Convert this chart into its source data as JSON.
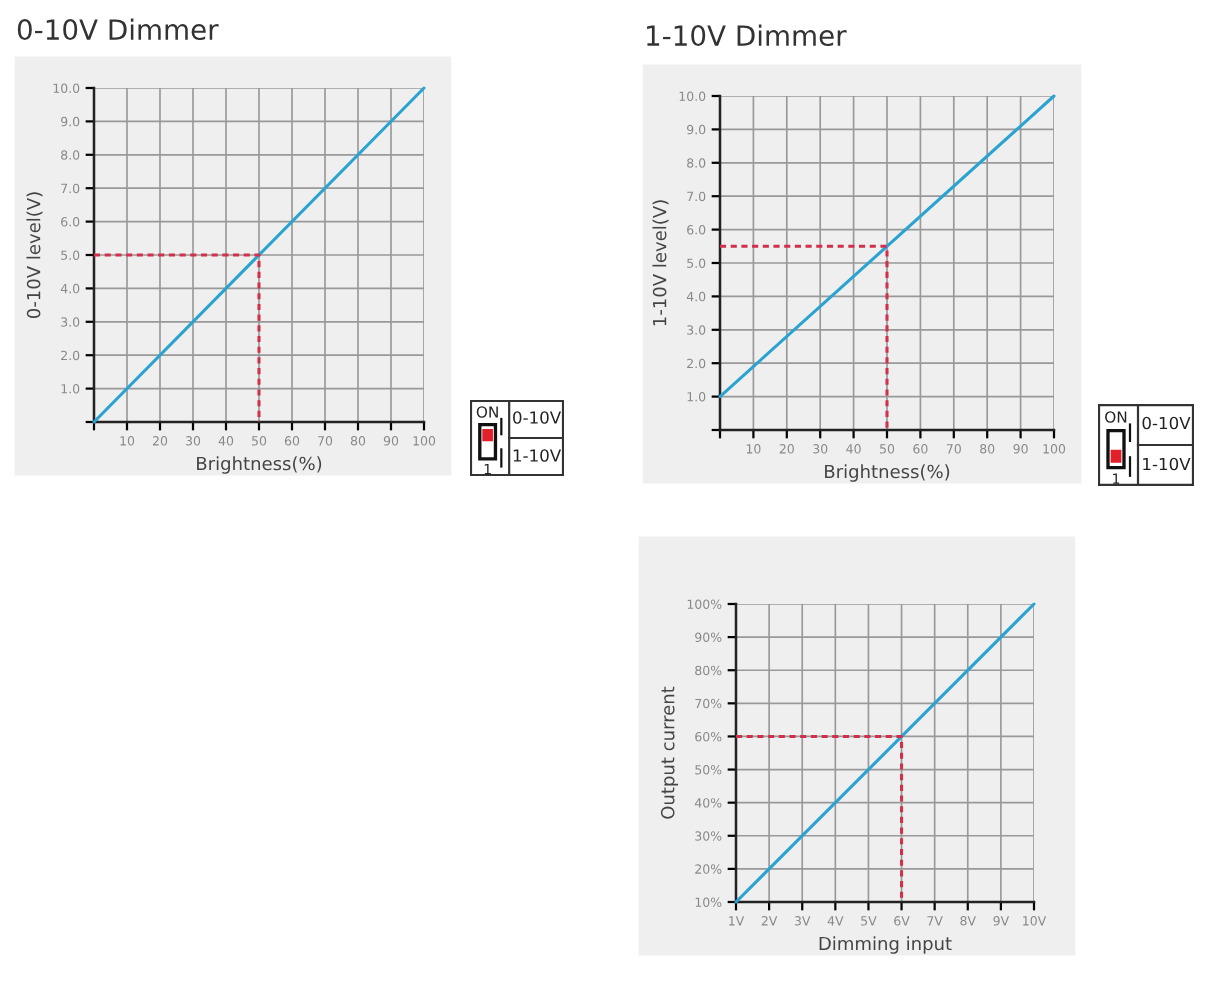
{
  "chart_data": [
    {
      "type": "line",
      "title": "0-10V Dimmer",
      "xlabel": "Brightness(%)",
      "ylabel": "0-10V level(V)",
      "xlim": [
        0,
        100
      ],
      "ylim": [
        0,
        10
      ],
      "xticks": [
        {
          "value": 0,
          "label": null
        },
        10,
        20,
        30,
        40,
        50,
        60,
        70,
        80,
        90,
        100
      ],
      "yticks": [
        {
          "value": 0,
          "label": null
        },
        {
          "value": 1,
          "label": "1.0"
        },
        {
          "value": 2,
          "label": "2.0"
        },
        {
          "value": 3,
          "label": "3.0"
        },
        {
          "value": 4,
          "label": "4.0"
        },
        {
          "value": 5,
          "label": "5.0"
        },
        {
          "value": 6,
          "label": "6.0"
        },
        {
          "value": 7,
          "label": "7.0"
        },
        {
          "value": 8,
          "label": "8.0"
        },
        {
          "value": 9,
          "label": "9.0"
        },
        {
          "value": 10,
          "label": "10.0"
        }
      ],
      "grid": true,
      "series": [
        {
          "color": "#2aa3d0",
          "x": [
            0,
            100
          ],
          "values": [
            0,
            10
          ]
        },
        {
          "color": "#d0304a",
          "line_style": "dashed",
          "x": [
            0,
            50,
            50
          ],
          "values": [
            5,
            5,
            0
          ]
        }
      ]
    },
    {
      "type": "line",
      "title": "1-10V Dimmer",
      "xlabel": "Brightness(%)",
      "ylabel": "1-10V level(V)",
      "xlim": [
        0,
        100
      ],
      "ylim": [
        0,
        10
      ],
      "xticks": [
        {
          "value": 0,
          "label": null
        },
        10,
        20,
        30,
        40,
        50,
        60,
        70,
        80,
        90,
        100
      ],
      "yticks": [
        {
          "value": 0,
          "label": null
        },
        {
          "value": 1,
          "label": "1.0"
        },
        {
          "value": 2,
          "label": "2.0"
        },
        {
          "value": 3,
          "label": "3.0"
        },
        {
          "value": 4,
          "label": "4.0"
        },
        {
          "value": 5,
          "label": "5.0"
        },
        {
          "value": 6,
          "label": "6.0"
        },
        {
          "value": 7,
          "label": "7.0"
        },
        {
          "value": 8,
          "label": "8.0"
        },
        {
          "value": 9,
          "label": "9.0"
        },
        {
          "value": 10,
          "label": "10.0"
        }
      ],
      "grid": true,
      "series": [
        {
          "color": "#2aa3d0",
          "x": [
            0,
            100
          ],
          "values": [
            1,
            10
          ]
        },
        {
          "color": "#d0304a",
          "line_style": "dashed",
          "x": [
            0,
            50,
            50
          ],
          "values": [
            5.5,
            5.5,
            0
          ]
        }
      ]
    },
    {
      "type": "line",
      "xlabel": "Dimming input",
      "ylabel": "Output current",
      "xlim": [
        1,
        10
      ],
      "ylim": [
        10,
        100
      ],
      "xticks": [
        {
          "value": 1,
          "label": "1V"
        },
        {
          "value": 2,
          "label": "2V"
        },
        {
          "value": 3,
          "label": "3V"
        },
        {
          "value": 4,
          "label": "4V"
        },
        {
          "value": 5,
          "label": "5V"
        },
        {
          "value": 6,
          "label": "6V"
        },
        {
          "value": 7,
          "label": "7V"
        },
        {
          "value": 8,
          "label": "8V"
        },
        {
          "value": 9,
          "label": "9V"
        },
        {
          "value": 10,
          "label": "10V"
        }
      ],
      "yticks": [
        {
          "value": 10,
          "label": "10%"
        },
        {
          "value": 20,
          "label": "20%"
        },
        {
          "value": 30,
          "label": "30%"
        },
        {
          "value": 40,
          "label": "40%"
        },
        {
          "value": 50,
          "label": "50%"
        },
        {
          "value": 60,
          "label": "60%"
        },
        {
          "value": 70,
          "label": "70%"
        },
        {
          "value": 80,
          "label": "80%"
        },
        {
          "value": 90,
          "label": "90%"
        },
        {
          "value": 100,
          "label": "100%"
        }
      ],
      "grid": true,
      "series": [
        {
          "color": "#2aa3d0",
          "x": [
            1,
            10
          ],
          "values": [
            10,
            100
          ]
        },
        {
          "color": "#d0304a",
          "line_style": "dashed",
          "x": [
            1,
            6,
            6
          ],
          "values": [
            60,
            60,
            10
          ]
        }
      ]
    },
    {
      "type": "other",
      "annotations": [
        "ON",
        "1",
        "0-10V",
        "1-10V"
      ]
    },
    {
      "type": "other",
      "annotations": [
        "ON",
        "1",
        "0-10V",
        "1-10V"
      ]
    }
  ]
}
